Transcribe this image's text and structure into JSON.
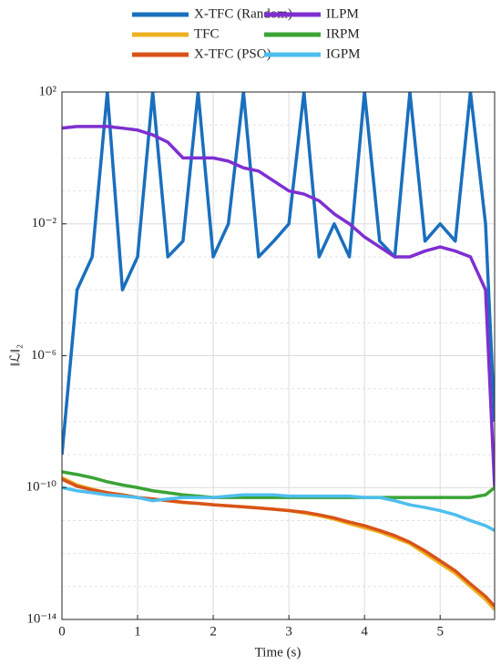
{
  "chart_data": {
    "type": "line",
    "ylog": true,
    "grid": true,
    "legend": "top-outside",
    "xlabel": "Time (s)",
    "ylabel": "‖ℒ‖₂",
    "x": [
      0,
      0.2,
      0.4,
      0.6,
      0.8,
      1.0,
      1.2,
      1.4,
      1.6,
      1.8,
      2.0,
      2.2,
      2.4,
      2.6,
      2.8,
      3.0,
      3.2,
      3.4,
      3.6,
      3.8,
      4.0,
      4.2,
      4.4,
      4.6,
      4.8,
      5.0,
      5.2,
      5.4,
      5.6,
      5.72
    ],
    "xlim": [
      0,
      5.72
    ],
    "xticks": [
      0,
      1,
      2,
      3,
      4,
      5
    ],
    "ylim": [
      1e-14,
      100
    ],
    "yticks": [
      {
        "value": 1e-14,
        "label": "10⁻¹⁴"
      },
      {
        "value": 1e-10,
        "label": "10⁻¹⁰"
      },
      {
        "value": 1e-06,
        "label": "10⁻⁶"
      },
      {
        "value": 0.01,
        "label": "10⁻²"
      },
      {
        "value": 100,
        "label": "10²"
      }
    ],
    "minor_yticks": [
      1e-13,
      1e-12,
      1e-11,
      1e-09,
      1e-08,
      1e-07,
      1e-05,
      0.0001,
      0.001,
      0.1,
      1,
      10
    ],
    "series": [
      {
        "name": "X-TFC (Random)",
        "color": "#1a6fbd",
        "values": [
          1e-09,
          0.0001,
          0.001,
          100,
          0.0001,
          0.001,
          100,
          0.001,
          0.003,
          100,
          0.001,
          0.01,
          100,
          0.001,
          0.003,
          0.01,
          100,
          0.001,
          0.01,
          0.001,
          100,
          0.003,
          0.001,
          100,
          0.003,
          0.01,
          0.003,
          100,
          0.01,
          1e-08
        ]
      },
      {
        "name": "TFC",
        "color": "#edb120",
        "values": [
          2e-10,
          1.2e-10,
          9e-11,
          7e-11,
          6e-11,
          5e-11,
          4.5e-11,
          4e-11,
          3.5e-11,
          3.3e-11,
          3e-11,
          2.8e-11,
          2.6e-11,
          2.4e-11,
          2.2e-11,
          2e-11,
          1.7e-11,
          1.4e-11,
          1.1e-11,
          8e-12,
          6e-12,
          4.5e-12,
          3e-12,
          2e-12,
          1e-12,
          5e-13,
          2.5e-13,
          1e-13,
          4e-14,
          2e-14
        ]
      },
      {
        "name": "X-TFC (PSO)",
        "color": "#d95319",
        "values": [
          1.8e-10,
          1.1e-10,
          8.5e-11,
          7e-11,
          6e-11,
          5e-11,
          4.5e-11,
          4e-11,
          3.6e-11,
          3.3e-11,
          3e-11,
          2.8e-11,
          2.6e-11,
          2.4e-11,
          2.2e-11,
          2e-11,
          1.8e-11,
          1.5e-11,
          1.2e-11,
          9e-12,
          7e-12,
          5e-12,
          3.5e-12,
          2.2e-12,
          1.2e-12,
          6e-13,
          3e-13,
          1.2e-13,
          5e-14,
          2.5e-14
        ]
      },
      {
        "name": "ILPM",
        "color": "#7e2fd0",
        "values": [
          8,
          9,
          9,
          9,
          8,
          7,
          5,
          3,
          1,
          1,
          1,
          0.8,
          0.5,
          0.4,
          0.2,
          0.1,
          0.08,
          0.05,
          0.02,
          0.01,
          0.004,
          0.002,
          0.001,
          0.001,
          0.0015,
          0.002,
          0.0015,
          0.001,
          0.0001,
          1e-10
        ]
      },
      {
        "name": "IRPM",
        "color": "#3aa335",
        "values": [
          3e-10,
          2.5e-10,
          2e-10,
          1.5e-10,
          1.2e-10,
          1e-10,
          8e-11,
          7e-11,
          6e-11,
          5.5e-11,
          5e-11,
          5e-11,
          5e-11,
          5e-11,
          5e-11,
          5e-11,
          5e-11,
          5e-11,
          5e-11,
          5e-11,
          5e-11,
          5e-11,
          5e-11,
          5e-11,
          5e-11,
          5e-11,
          5e-11,
          5e-11,
          6e-11,
          1e-10
        ]
      },
      {
        "name": "IGPM",
        "color": "#4dbeee",
        "values": [
          1e-10,
          8e-11,
          7e-11,
          6e-11,
          5.5e-11,
          5e-11,
          4e-11,
          4.5e-11,
          5e-11,
          5e-11,
          5e-11,
          5.5e-11,
          6e-11,
          6e-11,
          6e-11,
          5.5e-11,
          5.5e-11,
          5.5e-11,
          5.5e-11,
          5.5e-11,
          5e-11,
          5e-11,
          4e-11,
          3e-11,
          2.5e-11,
          2e-11,
          1.5e-11,
          1e-11,
          7e-12,
          5e-12
        ]
      }
    ]
  }
}
